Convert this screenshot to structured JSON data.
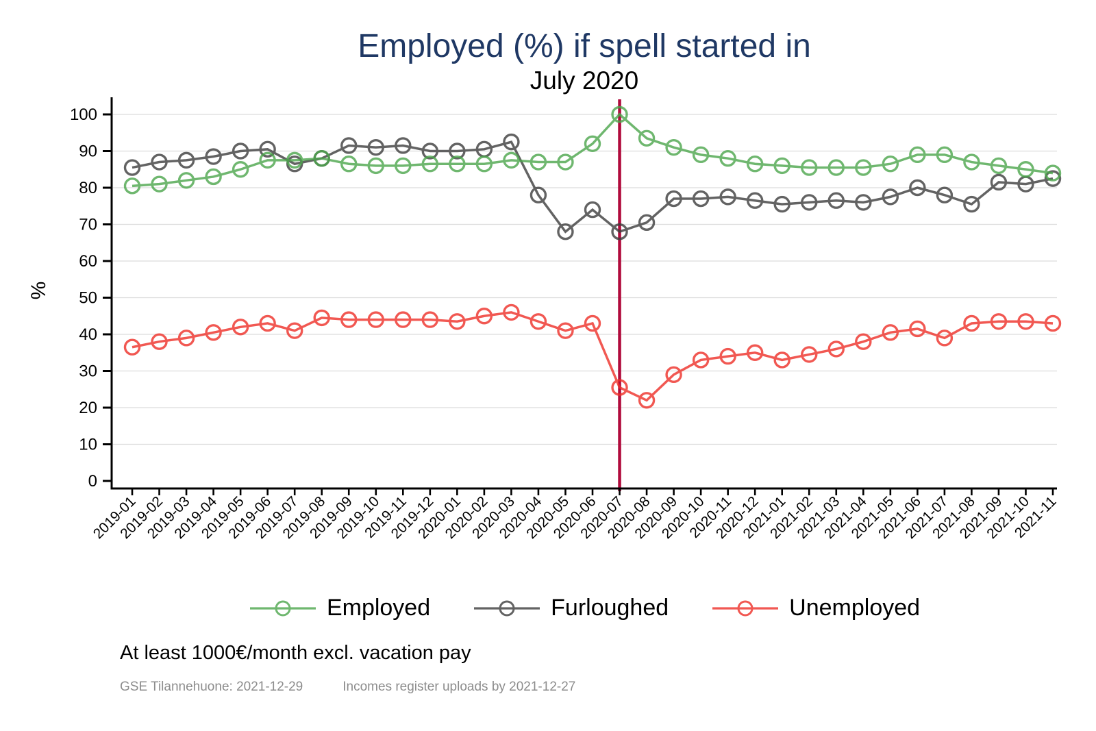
{
  "figure": {
    "title": "Employed (%) if spell started in",
    "subtitle": "July 2020",
    "note_primary": "At least 1000€/month excl. vacation pay",
    "note_source_left": "GSE Tilannehuone: 2021-12-29",
    "note_source_right": "Incomes register uploads by 2021-12-27"
  },
  "colors": {
    "title": "#1f3864",
    "employed": "#4ca64c",
    "furloughed": "#3d3d3d",
    "unemployed": "#ee2f28",
    "event_line": "#b00b3c",
    "grid": "#dcdcdc",
    "axis": "#000000",
    "note_muted": "#8c8c8c"
  },
  "chart_data": {
    "type": "line",
    "title": "Employed (%) if spell started in",
    "subtitle": "July 2020",
    "xlabel": "",
    "ylabel": "%",
    "ylim": [
      0,
      100
    ],
    "ytick_step": 10,
    "grid": true,
    "legend_position": "bottom",
    "marker": "circle_hollow",
    "x_tick_rotation": -45,
    "event_line": {
      "category": "2020-07",
      "color": "#b00b3c"
    },
    "categories": [
      "2019-01",
      "2019-02",
      "2019-03",
      "2019-04",
      "2019-05",
      "2019-06",
      "2019-07",
      "2019-08",
      "2019-09",
      "2019-10",
      "2019-11",
      "2019-12",
      "2020-01",
      "2020-02",
      "2020-03",
      "2020-04",
      "2020-05",
      "2020-06",
      "2020-07",
      "2020-08",
      "2020-09",
      "2020-10",
      "2020-11",
      "2020-12",
      "2021-01",
      "2021-02",
      "2021-03",
      "2021-04",
      "2021-05",
      "2021-06",
      "2021-07",
      "2021-08",
      "2021-09",
      "2021-10",
      "2021-11"
    ],
    "series": [
      {
        "name": "Employed",
        "color": "#4ca64c",
        "values": [
          80.5,
          81,
          82,
          83,
          85,
          87.5,
          87.5,
          88,
          86.5,
          86,
          86,
          86.5,
          86.5,
          86.5,
          87.5,
          87,
          87,
          92,
          100,
          93.5,
          91,
          89,
          88,
          86.5,
          86,
          85.5,
          85.5,
          85.5,
          86.5,
          89,
          89,
          87,
          86,
          85,
          84
        ]
      },
      {
        "name": "Furloughed",
        "color": "#3d3d3d",
        "values": [
          85.5,
          87,
          87.5,
          88.5,
          90,
          90.5,
          86.5,
          88,
          91.5,
          91,
          91.5,
          90,
          90,
          90.5,
          92.5,
          78,
          68,
          74,
          68,
          70.5,
          77,
          77,
          77.5,
          76.5,
          75.5,
          76,
          76.5,
          76,
          77.5,
          80,
          78,
          75.5,
          81.5,
          81,
          82.5
        ]
      },
      {
        "name": "Unemployed",
        "color": "#ee2f28",
        "values": [
          36.5,
          38,
          39,
          40.5,
          42,
          43,
          41,
          44.5,
          44,
          44,
          44,
          44,
          43.5,
          45,
          46,
          43.5,
          41,
          43,
          25.5,
          22,
          29,
          33,
          34,
          35,
          33,
          34.5,
          36,
          38,
          40.5,
          41.5,
          39,
          43,
          43.5,
          43.5,
          43
        ]
      }
    ]
  }
}
